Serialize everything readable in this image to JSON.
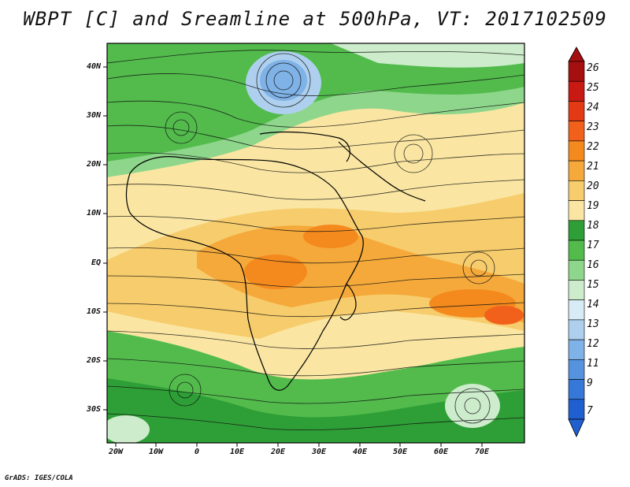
{
  "title": "WBPT [C] and Sreamline at 500hPa, VT: 2017102509",
  "lat_labels": [
    "40N",
    "30N",
    "20N",
    "10N",
    "EQ",
    "10S",
    "20S",
    "30S"
  ],
  "lon_labels": [
    "20W",
    "10W",
    "0",
    "10E",
    "20E",
    "30E",
    "40E",
    "50E",
    "60E",
    "70E"
  ],
  "colorbar": {
    "labels": [
      "26",
      "25",
      "24",
      "23",
      "22",
      "21",
      "20",
      "19",
      "18",
      "17",
      "16",
      "15",
      "14",
      "13",
      "12",
      "11",
      "9",
      "7"
    ],
    "colors": [
      "#a50f0f",
      "#c81a12",
      "#e23a14",
      "#f2611c",
      "#f48a1e",
      "#f5a93a",
      "#f7cc6c",
      "#fae6a2",
      "#2e9e36",
      "#52bb4c",
      "#8ed68b",
      "#cdeccc",
      "#d7ecf6",
      "#aed0ee",
      "#7fb2e6",
      "#5593de",
      "#3678d8",
      "#1f5fd0"
    ]
  },
  "credit": "GrADS: IGES/COLA"
}
